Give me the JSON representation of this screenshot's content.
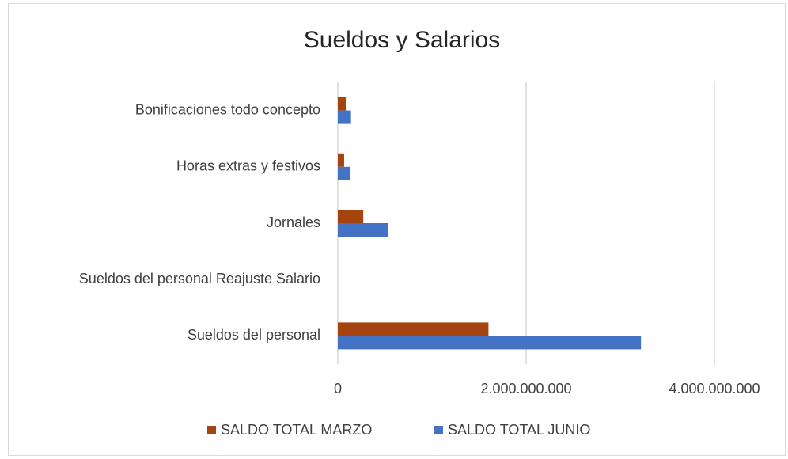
{
  "chart_data": {
    "type": "barh",
    "title": "Sueldos y Salarios",
    "categories": [
      "Sueldos del personal",
      "Sueldos del personal Reajuste Salario",
      "Jornales",
      "Horas extras y festivos",
      "Bonificaciones todo concepto"
    ],
    "series": [
      {
        "name": "SALDO TOTAL MARZO",
        "color": "#a5440f",
        "values": [
          1600000000,
          0,
          270000000,
          67000000,
          84000000
        ]
      },
      {
        "name": "SALDO TOTAL JUNIO",
        "color": "#4472c4",
        "values": [
          3220000000,
          0,
          530000000,
          130000000,
          140000000
        ]
      }
    ],
    "xlim": [
      0,
      4000000000
    ],
    "xticks": [
      0,
      {
        "value": 2000000000,
        "label": "2.000.000.000"
      },
      {
        "value": 4000000000,
        "label": "4.000.000.000"
      }
    ],
    "grid": true,
    "legend": "bottom"
  }
}
